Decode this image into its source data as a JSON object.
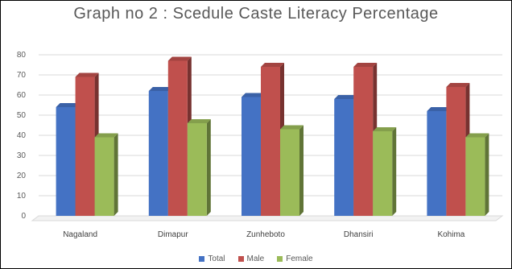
{
  "chart_data": {
    "type": "bar",
    "title": "Graph no 2 : Scedule Caste Literacy Percentage",
    "categories": [
      "Nagaland",
      "Dimapur",
      "Zunheboto",
      "Dhansiri",
      "Kohima"
    ],
    "series": [
      {
        "name": "Total",
        "values": [
          54,
          62,
          59,
          58,
          52
        ],
        "color": "#4472C4"
      },
      {
        "name": "Male",
        "values": [
          69,
          77,
          74,
          74,
          64
        ],
        "color": "#C0504D"
      },
      {
        "name": "Female",
        "values": [
          39,
          46,
          43,
          42,
          39
        ],
        "color": "#9BBB59"
      }
    ],
    "yticks": [
      "0",
      "10",
      "20",
      "30",
      "40",
      "50",
      "60",
      "70",
      "80"
    ],
    "ylim": [
      0,
      80
    ],
    "grid": true,
    "legend_position": "bottom"
  }
}
